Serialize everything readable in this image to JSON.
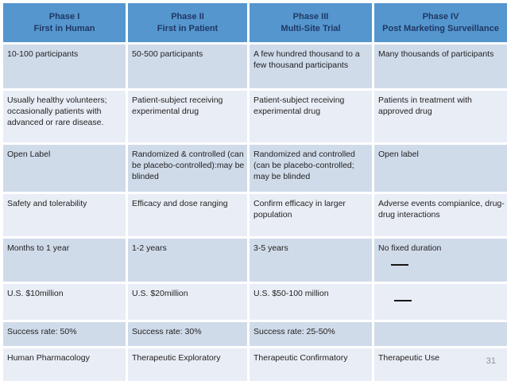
{
  "slide": {
    "page_number": "31",
    "table": {
      "columns": [
        {
          "phase": "Phase I",
          "subtitle": "First in Human"
        },
        {
          "phase": "Phase II",
          "subtitle": "First in Patient"
        },
        {
          "phase": "Phase III",
          "subtitle": "Multi-Site Trial"
        },
        {
          "phase": "Phase IV",
          "subtitle": "Post Marketing Surveillance"
        }
      ],
      "rows": [
        {
          "name": "participants",
          "cells": [
            "10-100 participants",
            "50-500 participants",
            "A few hundred thousand to a few thousand participants",
            "Many thousands of participants"
          ]
        },
        {
          "name": "subjects",
          "cells": [
            "Usually healthy volunteers; occasionally patients with advanced or rare disease.",
            "Patient-subject receiving experimental drug",
            "Patient-subject receiving experimental drug",
            "Patients in treatment with approved drug"
          ]
        },
        {
          "name": "design",
          "cells": [
            "Open Label",
            "Randomized & controlled (can be placebo-controlled):may be blinded",
            "Randomized and controlled (can be placebo-controlled; may be blinded",
            "Open label"
          ]
        },
        {
          "name": "objective",
          "cells": [
            "Safety and tolerability",
            "Efficacy and dose ranging",
            "Confirm efficacy in larger population",
            "Adverse events compianlce, drug-drug interactions"
          ]
        },
        {
          "name": "duration",
          "cells": [
            "Months to 1 year",
            "1-2 years",
            "3-5 years",
            "No fixed duration"
          ]
        },
        {
          "name": "cost",
          "cells": [
            "U.S. $10million",
            "U.S. $20million",
            "U.S. $50-100 million",
            ""
          ]
        },
        {
          "name": "success-rate",
          "cells": [
            "Success rate: 50%",
            "Success rate: 30%",
            "Success rate: 25-50%",
            ""
          ]
        },
        {
          "name": "classification",
          "cells": [
            "Human Pharmacology",
            "Therapeutic Exploratory",
            "Therapeutic Confirmatory",
            "Therapeutic Use"
          ]
        }
      ],
      "dash_marks": [
        {
          "row": "duration",
          "column": 4
        },
        {
          "row": "cost",
          "column": 4
        }
      ]
    },
    "colors": {
      "header_bg": "#5596ce",
      "header_text": "#1f3864",
      "row_odd_bg": "#d0dbea",
      "row_even_bg": "#e9edf5",
      "body_text": "#222222",
      "dash": "#161616",
      "page_number_text": "#8b929e"
    }
  }
}
